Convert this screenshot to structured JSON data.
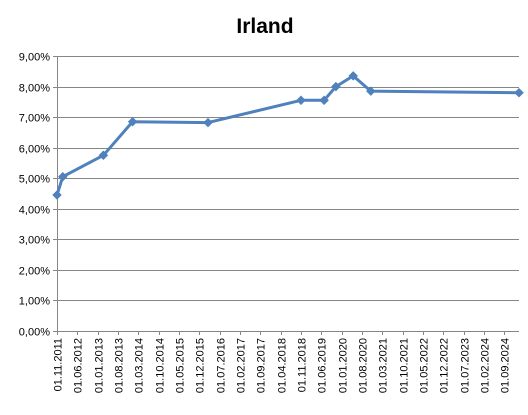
{
  "chart_data": {
    "type": "line",
    "title": "Irland",
    "xlabel": "",
    "ylabel": "",
    "ylim": [
      0,
      9
    ],
    "y_tick_labels": [
      "0,00%",
      "1,00%",
      "2,00%",
      "3,00%",
      "4,00%",
      "5,00%",
      "6,00%",
      "7,00%",
      "8,00%",
      "9,00%"
    ],
    "x_tick_labels": [
      "01.11.2011",
      "01.06.2012",
      "01.01.2013",
      "01.08.2013",
      "01.03.2014",
      "01.10.2014",
      "01.05.2015",
      "01.12.2015",
      "01.07.2016",
      "01.02.2017",
      "01.09.2017",
      "01.04.2018",
      "01.11.2018",
      "01.06.2019",
      "01.01.2020",
      "01.08.2020",
      "01.03.2021",
      "01.10.2021",
      "01.05.2022",
      "01.12.2022",
      "01.07.2023",
      "01.02.2024",
      "01.09.2024"
    ],
    "x_range": [
      "2011-11-01",
      "2025-02-01"
    ],
    "grid": "horizontal",
    "legend": "none",
    "series": [
      {
        "color": "#4F81BD",
        "marker": "diamond",
        "points": [
          {
            "x": "2011-11-01",
            "y": 4.45
          },
          {
            "x": "2012-01-01",
            "y": 5.05
          },
          {
            "x": "2013-03-01",
            "y": 5.75
          },
          {
            "x": "2014-01-01",
            "y": 6.85
          },
          {
            "x": "2016-03-01",
            "y": 6.82
          },
          {
            "x": "2018-11-01",
            "y": 7.55
          },
          {
            "x": "2019-07-01",
            "y": 7.55
          },
          {
            "x": "2019-11-01",
            "y": 8.0
          },
          {
            "x": "2020-05-01",
            "y": 8.35
          },
          {
            "x": "2020-11-01",
            "y": 7.85
          },
          {
            "x": "2025-02-01",
            "y": 7.8
          }
        ]
      }
    ]
  }
}
